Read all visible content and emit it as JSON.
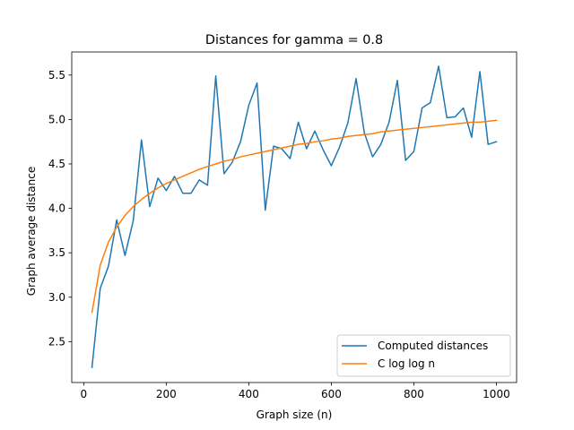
{
  "chart_data": {
    "type": "line",
    "title": "Distances for gamma = 0.8",
    "xlabel": "Graph size (n)",
    "ylabel": "Graph average distance",
    "xlim": [
      -29,
      1049
    ],
    "ylim": [
      2.04,
      5.76
    ],
    "xticks": [
      0,
      200,
      400,
      600,
      800,
      1000
    ],
    "yticks": [
      2.5,
      3.0,
      3.5,
      4.0,
      4.5,
      5.0,
      5.5
    ],
    "xtick_labels": [
      "0",
      "200",
      "400",
      "600",
      "800",
      "1000"
    ],
    "ytick_labels": [
      "2.5",
      "3.0",
      "3.5",
      "4.0",
      "4.5",
      "5.0",
      "5.5"
    ],
    "grid": false,
    "legend_position": "lower-right",
    "x": [
      20,
      40,
      60,
      80,
      100,
      120,
      140,
      160,
      180,
      200,
      220,
      240,
      260,
      280,
      300,
      320,
      340,
      360,
      380,
      400,
      420,
      440,
      460,
      480,
      500,
      520,
      540,
      560,
      580,
      600,
      620,
      640,
      660,
      680,
      700,
      720,
      740,
      760,
      780,
      800,
      820,
      840,
      860,
      880,
      900,
      920,
      940,
      960,
      980,
      1000
    ],
    "series": [
      {
        "name": "Computed distances",
        "color": "#1f77b4",
        "values": [
          2.21,
          3.1,
          3.35,
          3.87,
          3.47,
          3.86,
          4.77,
          4.02,
          4.34,
          4.2,
          4.36,
          4.17,
          4.17,
          4.32,
          4.26,
          5.49,
          4.39,
          4.52,
          4.75,
          5.16,
          5.41,
          3.98,
          4.7,
          4.67,
          4.56,
          4.97,
          4.67,
          4.87,
          4.66,
          4.48,
          4.69,
          4.96,
          5.46,
          4.85,
          4.58,
          4.72,
          4.97,
          5.44,
          4.54,
          4.64,
          5.13,
          5.19,
          5.6,
          5.02,
          5.03,
          5.13,
          4.8,
          5.54,
          4.72,
          4.75
        ]
      },
      {
        "name": "C log log n",
        "color": "#ff7f0e",
        "values": [
          2.83,
          3.36,
          3.62,
          3.79,
          3.92,
          4.02,
          4.1,
          4.17,
          4.23,
          4.28,
          4.32,
          4.36,
          4.4,
          4.44,
          4.47,
          4.5,
          4.53,
          4.55,
          4.58,
          4.6,
          4.62,
          4.64,
          4.66,
          4.68,
          4.7,
          4.72,
          4.73,
          4.75,
          4.76,
          4.78,
          4.79,
          4.81,
          4.82,
          4.83,
          4.84,
          4.86,
          4.87,
          4.88,
          4.89,
          4.9,
          4.91,
          4.92,
          4.93,
          4.94,
          4.95,
          4.96,
          4.97,
          4.97,
          4.98,
          4.99
        ]
      }
    ]
  }
}
